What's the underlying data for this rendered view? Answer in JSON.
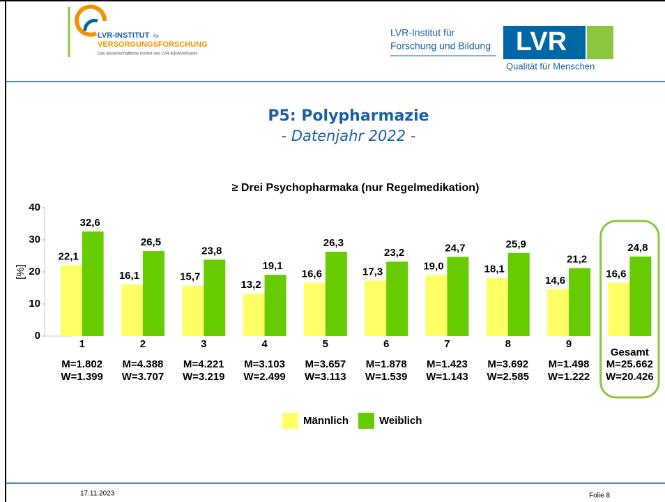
{
  "header": {
    "left_logo": {
      "line1": "LVR-INSTITUT",
      "line1_small": "für",
      "line2": "VERSORGUNGSFORSCHUNG",
      "tagline": "Das wissenschaftliche Institut des LVR-Klinikverbunds"
    },
    "right_text": [
      "LVR-Institut für",
      "Forschung und Bildung"
    ],
    "right_logo": {
      "mark": "LVR",
      "slogan": "Qualität für Menschen"
    }
  },
  "title": "P5: Polypharmazie",
  "subtitle": "- Datenjahr 2022 -",
  "chart_data": {
    "type": "bar",
    "title": "≥ Drei Psychopharmaka (nur Regelmedikation)",
    "y_label": "[%]",
    "categories": [
      "1",
      "2",
      "3",
      "4",
      "5",
      "6",
      "7",
      "8",
      "9",
      "Gesamt"
    ],
    "category_notes": [
      [
        "M=1.802",
        "W=1.399"
      ],
      [
        "M=4.388",
        "W=3.707"
      ],
      [
        "M=4.221",
        "W=3.219"
      ],
      [
        "M=3.103",
        "W=2.499"
      ],
      [
        "M=3.657",
        "W=3.113"
      ],
      [
        "M=1.878",
        "W=1.539"
      ],
      [
        "M=1.423",
        "W=1.143"
      ],
      [
        "M=3.692",
        "W=2.585"
      ],
      [
        "M=1.498",
        "W=1.222"
      ],
      [
        "M=25.662",
        "W=20.426"
      ]
    ],
    "series": [
      {
        "name": "Männlich",
        "color": "#ffff66",
        "values": [
          22.1,
          16.1,
          15.7,
          13.2,
          16.6,
          17.3,
          19.0,
          18.1,
          14.6,
          16.6
        ],
        "value_labels": [
          "22,1",
          "16,1",
          "15,7",
          "13,2",
          "16,6",
          "17,3",
          "19,0",
          "18,1",
          "14,6",
          "16,6"
        ]
      },
      {
        "name": "Weiblich",
        "color": "#66cc00",
        "values": [
          32.6,
          26.5,
          23.8,
          19.1,
          26.3,
          23.2,
          24.7,
          25.9,
          21.2,
          24.8
        ],
        "value_labels": [
          "32,6",
          "26,5",
          "23,8",
          "19,1",
          "26,3",
          "23,2",
          "24,7",
          "25,9",
          "21,2",
          "24,8"
        ]
      }
    ],
    "ylim": [
      0,
      40
    ],
    "yticks": [
      0,
      10,
      20,
      30,
      40
    ],
    "grid": false,
    "legend": "bottom",
    "highlight_color": "#8cc63f"
  },
  "footer": {
    "date": "17.11.2023",
    "slide": "Folie 8"
  }
}
